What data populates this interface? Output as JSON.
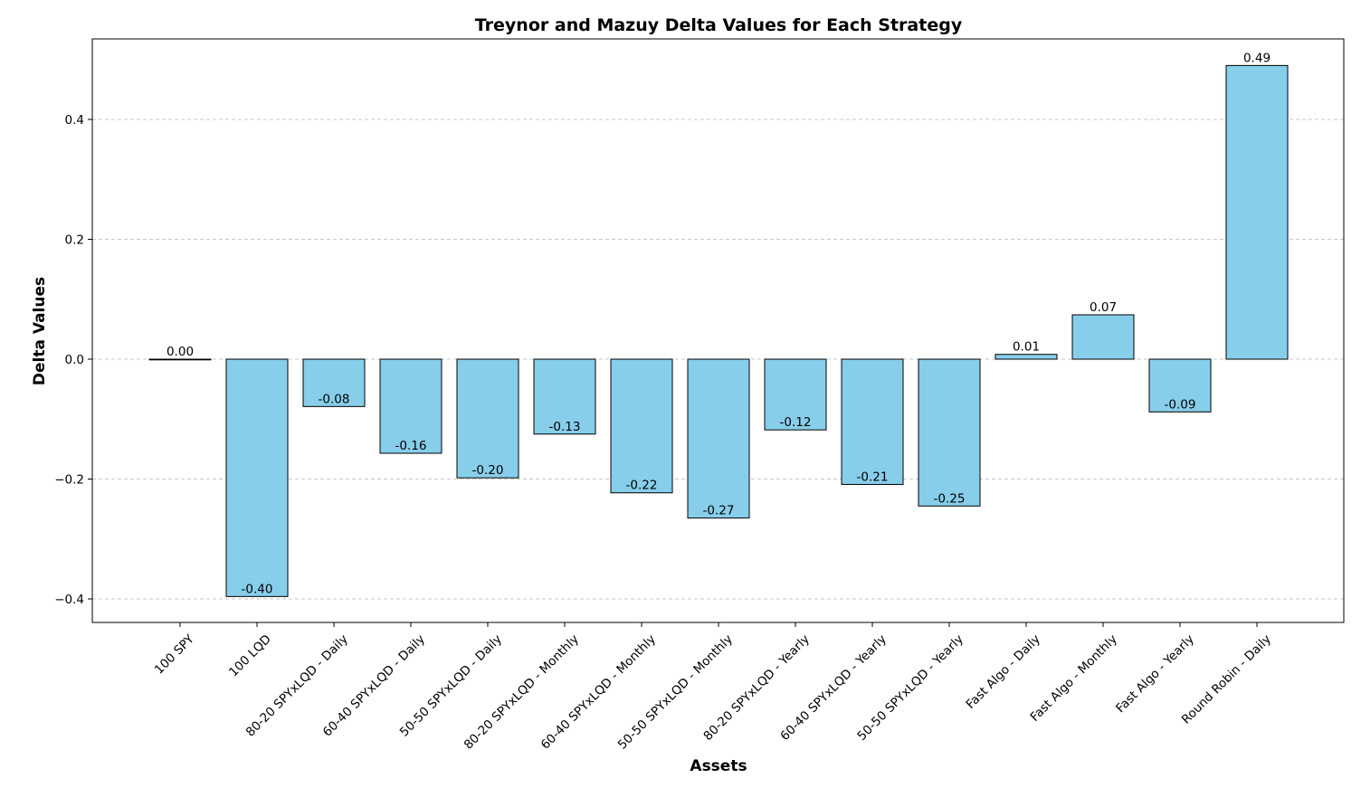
{
  "chart_data": {
    "type": "bar",
    "title": "Treynor and Mazuy Delta Values for Each Strategy",
    "xlabel": "Assets",
    "ylabel": "Delta Values",
    "categories": [
      "100 SPY",
      "100 LQD",
      "80-20 SPYxLQD - Daily",
      "60-40 SPYxLQD - Daily",
      "50-50 SPYxLQD - Daily",
      "80-20 SPYxLQD - Monthly",
      "60-40 SPYxLQD - Monthly",
      "50-50 SPYxLQD - Monthly",
      "80-20 SPYxLQD - Yearly",
      "60-40 SPYxLQD - Yearly",
      "50-50 SPYxLQD - Yearly",
      "Fast Algo - Daily",
      "Fast Algo - Monthly",
      "Fast Algo - Yearly",
      "Round Robin - Daily"
    ],
    "values": [
      0.0,
      -0.396,
      -0.079,
      -0.157,
      -0.198,
      -0.125,
      -0.223,
      -0.265,
      -0.118,
      -0.209,
      -0.245,
      0.008,
      0.074,
      -0.088,
      0.49
    ],
    "data_labels": [
      "0.00",
      "-0.40",
      "-0.08",
      "-0.16",
      "-0.20",
      "-0.13",
      "-0.22",
      "-0.27",
      "-0.12",
      "-0.21",
      "-0.25",
      "0.01",
      "0.07",
      "-0.09",
      "0.49"
    ],
    "yticks": [
      -0.4,
      -0.2,
      0.0,
      0.2,
      0.4
    ],
    "ytick_labels": [
      "−0.4",
      "−0.2",
      "0.0",
      "0.2",
      "0.4"
    ],
    "ylim": [
      -0.44,
      0.534
    ],
    "grid": "horizontal dashed",
    "colors": {
      "bar_fill": "#87CEEB",
      "bar_edge": "#000000",
      "grid": "#c8c8c8"
    }
  }
}
